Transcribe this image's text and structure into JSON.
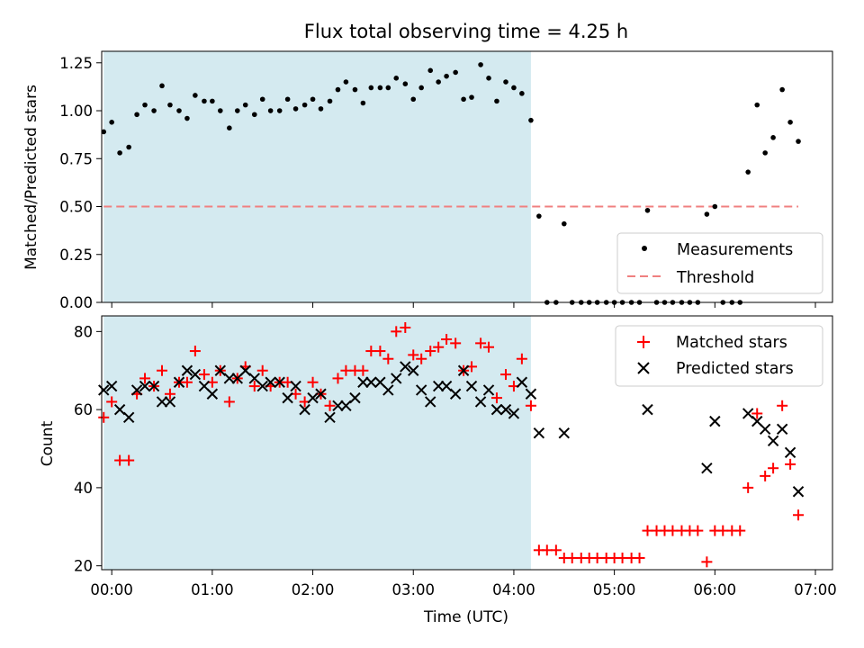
{
  "chart_data": [
    {
      "type": "scatter",
      "title": "Flux total observing time = 4.25 h",
      "xlabel": "",
      "ylabel": "Matched/Predicted stars",
      "xlim": [
        -0.1,
        7.17
      ],
      "ylim": [
        0,
        1.31
      ],
      "yticks": [
        0.0,
        0.25,
        0.5,
        0.75,
        1.0,
        1.25
      ],
      "ytick_labels": [
        "0.00",
        "0.25",
        "0.50",
        "0.75",
        "1.00",
        "1.25"
      ],
      "xticks": [
        0,
        1,
        2,
        3,
        4,
        5,
        6,
        7
      ],
      "shaded_interval": [
        -0.08,
        4.17
      ],
      "shade_color": "#d4eaf0",
      "legend_position": "lower-right",
      "series": [
        {
          "name": "Measurements",
          "marker": "dot",
          "color": "#000000",
          "points": [
            [
              -0.08,
              0.89
            ],
            [
              0.0,
              0.94
            ],
            [
              0.08,
              0.78
            ],
            [
              0.17,
              0.81
            ],
            [
              0.25,
              0.98
            ],
            [
              0.33,
              1.03
            ],
            [
              0.42,
              1.0
            ],
            [
              0.5,
              1.13
            ],
            [
              0.58,
              1.03
            ],
            [
              0.67,
              1.0
            ],
            [
              0.75,
              0.96
            ],
            [
              0.83,
              1.08
            ],
            [
              0.92,
              1.05
            ],
            [
              1.0,
              1.05
            ],
            [
              1.08,
              1.0
            ],
            [
              1.17,
              0.91
            ],
            [
              1.25,
              1.0
            ],
            [
              1.33,
              1.03
            ],
            [
              1.42,
              0.98
            ],
            [
              1.5,
              1.06
            ],
            [
              1.58,
              1.0
            ],
            [
              1.67,
              1.0
            ],
            [
              1.75,
              1.06
            ],
            [
              1.83,
              1.01
            ],
            [
              1.92,
              1.03
            ],
            [
              2.0,
              1.06
            ],
            [
              2.08,
              1.01
            ],
            [
              2.17,
              1.05
            ],
            [
              2.25,
              1.11
            ],
            [
              2.33,
              1.15
            ],
            [
              2.42,
              1.11
            ],
            [
              2.5,
              1.04
            ],
            [
              2.58,
              1.12
            ],
            [
              2.67,
              1.12
            ],
            [
              2.75,
              1.12
            ],
            [
              2.83,
              1.17
            ],
            [
              2.92,
              1.14
            ],
            [
              3.0,
              1.06
            ],
            [
              3.08,
              1.12
            ],
            [
              3.17,
              1.21
            ],
            [
              3.25,
              1.15
            ],
            [
              3.33,
              1.18
            ],
            [
              3.42,
              1.2
            ],
            [
              3.5,
              1.06
            ],
            [
              3.58,
              1.07
            ],
            [
              3.67,
              1.24
            ],
            [
              3.75,
              1.17
            ],
            [
              3.83,
              1.05
            ],
            [
              3.92,
              1.15
            ],
            [
              4.0,
              1.12
            ],
            [
              4.08,
              1.09
            ],
            [
              4.17,
              0.95
            ],
            [
              4.25,
              0.45
            ],
            [
              4.33,
              0.0
            ],
            [
              4.42,
              0.0
            ],
            [
              4.5,
              0.41
            ],
            [
              4.58,
              0.0
            ],
            [
              4.67,
              0.0
            ],
            [
              4.75,
              0.0
            ],
            [
              4.83,
              0.0
            ],
            [
              4.92,
              0.0
            ],
            [
              5.0,
              0.0
            ],
            [
              5.08,
              0.0
            ],
            [
              5.17,
              0.0
            ],
            [
              5.25,
              0.0
            ],
            [
              5.33,
              0.48
            ],
            [
              5.42,
              0.0
            ],
            [
              5.5,
              0.0
            ],
            [
              5.58,
              0.0
            ],
            [
              5.67,
              0.0
            ],
            [
              5.75,
              0.0
            ],
            [
              5.83,
              0.0
            ],
            [
              5.92,
              0.46
            ],
            [
              6.0,
              0.5
            ],
            [
              6.08,
              0.0
            ],
            [
              6.17,
              0.0
            ],
            [
              6.25,
              0.0
            ],
            [
              6.33,
              0.68
            ],
            [
              6.42,
              1.03
            ],
            [
              6.5,
              0.78
            ],
            [
              6.58,
              0.86
            ],
            [
              6.67,
              1.11
            ],
            [
              6.75,
              0.94
            ],
            [
              6.83,
              0.84
            ]
          ]
        },
        {
          "name": "Threshold",
          "marker": "dashed-line",
          "color": "#f08080",
          "points": [
            [
              -0.08,
              0.5
            ],
            [
              6.83,
              0.5
            ]
          ]
        }
      ]
    },
    {
      "type": "scatter",
      "title": "",
      "xlabel": "Time (UTC)",
      "ylabel": "Count",
      "xlim": [
        -0.1,
        7.17
      ],
      "ylim": [
        19,
        84
      ],
      "yticks": [
        20,
        40,
        60,
        80
      ],
      "ytick_labels": [
        "20",
        "40",
        "60",
        "80"
      ],
      "xticks": [
        0,
        1,
        2,
        3,
        4,
        5,
        6,
        7
      ],
      "xtick_labels": [
        "00:00",
        "01:00",
        "02:00",
        "03:00",
        "04:00",
        "05:00",
        "06:00",
        "07:00"
      ],
      "shaded_interval": [
        -0.08,
        4.17
      ],
      "shade_color": "#d4eaf0",
      "legend_position": "upper-right",
      "series": [
        {
          "name": "Matched stars",
          "marker": "plus",
          "color": "#ff0000",
          "points": [
            [
              -0.08,
              58
            ],
            [
              0.0,
              62
            ],
            [
              0.08,
              47
            ],
            [
              0.17,
              47
            ],
            [
              0.25,
              64
            ],
            [
              0.33,
              68
            ],
            [
              0.42,
              66
            ],
            [
              0.5,
              70
            ],
            [
              0.58,
              64
            ],
            [
              0.67,
              67
            ],
            [
              0.75,
              67
            ],
            [
              0.83,
              75
            ],
            [
              0.92,
              69
            ],
            [
              1.0,
              67
            ],
            [
              1.08,
              70
            ],
            [
              1.17,
              62
            ],
            [
              1.25,
              68
            ],
            [
              1.33,
              71
            ],
            [
              1.42,
              66
            ],
            [
              1.5,
              70
            ],
            [
              1.58,
              66
            ],
            [
              1.67,
              67
            ],
            [
              1.75,
              67
            ],
            [
              1.83,
              64
            ],
            [
              1.92,
              62
            ],
            [
              2.0,
              67
            ],
            [
              2.08,
              64
            ],
            [
              2.17,
              61
            ],
            [
              2.25,
              68
            ],
            [
              2.33,
              70
            ],
            [
              2.42,
              70
            ],
            [
              2.5,
              70
            ],
            [
              2.58,
              75
            ],
            [
              2.67,
              75
            ],
            [
              2.75,
              73
            ],
            [
              2.83,
              80
            ],
            [
              2.92,
              81
            ],
            [
              3.0,
              74
            ],
            [
              3.08,
              73
            ],
            [
              3.17,
              75
            ],
            [
              3.25,
              76
            ],
            [
              3.33,
              78
            ],
            [
              3.42,
              77
            ],
            [
              3.5,
              70
            ],
            [
              3.58,
              71
            ],
            [
              3.67,
              77
            ],
            [
              3.75,
              76
            ],
            [
              3.83,
              63
            ],
            [
              3.92,
              69
            ],
            [
              4.0,
              66
            ],
            [
              4.08,
              73
            ],
            [
              4.17,
              61
            ],
            [
              4.25,
              24
            ],
            [
              4.33,
              24
            ],
            [
              4.42,
              24
            ],
            [
              4.5,
              22
            ],
            [
              4.58,
              22
            ],
            [
              4.67,
              22
            ],
            [
              4.75,
              22
            ],
            [
              4.83,
              22
            ],
            [
              4.92,
              22
            ],
            [
              5.0,
              22
            ],
            [
              5.08,
              22
            ],
            [
              5.17,
              22
            ],
            [
              5.25,
              22
            ],
            [
              5.33,
              29
            ],
            [
              5.42,
              29
            ],
            [
              5.5,
              29
            ],
            [
              5.58,
              29
            ],
            [
              5.67,
              29
            ],
            [
              5.75,
              29
            ],
            [
              5.83,
              29
            ],
            [
              5.92,
              21
            ],
            [
              6.0,
              29
            ],
            [
              6.08,
              29
            ],
            [
              6.17,
              29
            ],
            [
              6.25,
              29
            ],
            [
              6.33,
              40
            ],
            [
              6.42,
              59
            ],
            [
              6.5,
              43
            ],
            [
              6.58,
              45
            ],
            [
              6.67,
              61
            ],
            [
              6.75,
              46
            ],
            [
              6.83,
              33
            ]
          ]
        },
        {
          "name": "Predicted stars",
          "marker": "x",
          "color": "#000000",
          "points": [
            [
              -0.08,
              65
            ],
            [
              0.0,
              66
            ],
            [
              0.08,
              60
            ],
            [
              0.17,
              58
            ],
            [
              0.25,
              65
            ],
            [
              0.33,
              66
            ],
            [
              0.42,
              66
            ],
            [
              0.5,
              62
            ],
            [
              0.58,
              62
            ],
            [
              0.67,
              67
            ],
            [
              0.75,
              70
            ],
            [
              0.83,
              69
            ],
            [
              0.92,
              66
            ],
            [
              1.0,
              64
            ],
            [
              1.08,
              70
            ],
            [
              1.17,
              68
            ],
            [
              1.25,
              68
            ],
            [
              1.33,
              70
            ],
            [
              1.42,
              68
            ],
            [
              1.5,
              66
            ],
            [
              1.58,
              67
            ],
            [
              1.67,
              67
            ],
            [
              1.75,
              63
            ],
            [
              1.83,
              66
            ],
            [
              1.92,
              60
            ],
            [
              2.0,
              63
            ],
            [
              2.08,
              64
            ],
            [
              2.17,
              58
            ],
            [
              2.25,
              61
            ],
            [
              2.33,
              61
            ],
            [
              2.42,
              63
            ],
            [
              2.5,
              67
            ],
            [
              2.58,
              67
            ],
            [
              2.67,
              67
            ],
            [
              2.75,
              65
            ],
            [
              2.83,
              68
            ],
            [
              2.92,
              71
            ],
            [
              3.0,
              70
            ],
            [
              3.08,
              65
            ],
            [
              3.17,
              62
            ],
            [
              3.25,
              66
            ],
            [
              3.33,
              66
            ],
            [
              3.42,
              64
            ],
            [
              3.5,
              70
            ],
            [
              3.58,
              66
            ],
            [
              3.67,
              62
            ],
            [
              3.75,
              65
            ],
            [
              3.83,
              60
            ],
            [
              3.92,
              60
            ],
            [
              4.0,
              59
            ],
            [
              4.08,
              67
            ],
            [
              4.17,
              64
            ],
            [
              4.25,
              54
            ],
            [
              4.5,
              54
            ],
            [
              5.33,
              60
            ],
            [
              5.92,
              45
            ],
            [
              6.0,
              57
            ],
            [
              6.42,
              57
            ],
            [
              6.5,
              55
            ],
            [
              6.58,
              52
            ],
            [
              6.67,
              55
            ],
            [
              6.75,
              49
            ],
            [
              6.83,
              39
            ],
            [
              6.33,
              59
            ]
          ]
        }
      ]
    }
  ]
}
